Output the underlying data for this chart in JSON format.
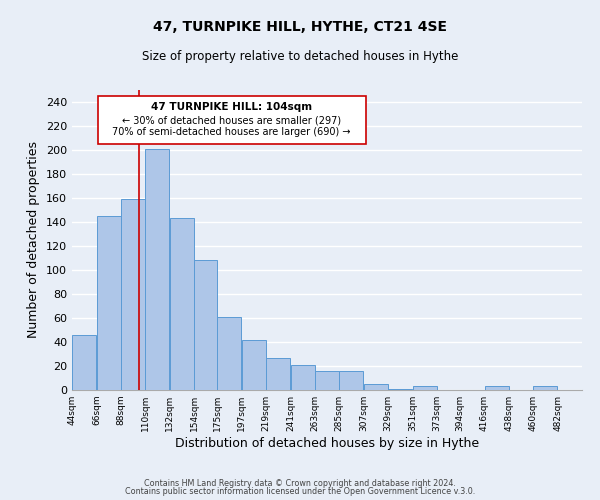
{
  "title": "47, TURNPIKE HILL, HYTHE, CT21 4SE",
  "subtitle": "Size of property relative to detached houses in Hythe",
  "xlabel": "Distribution of detached houses by size in Hythe",
  "ylabel": "Number of detached properties",
  "bar_left_edges": [
    44,
    66,
    88,
    110,
    132,
    154,
    175,
    197,
    219,
    241,
    263,
    285,
    307,
    329,
    351,
    373,
    394,
    416,
    438,
    460
  ],
  "bar_widths": [
    22,
    22,
    22,
    22,
    22,
    21,
    22,
    22,
    22,
    22,
    22,
    22,
    22,
    22,
    22,
    21,
    22,
    22,
    22,
    22
  ],
  "bar_heights": [
    46,
    145,
    159,
    201,
    143,
    108,
    61,
    42,
    27,
    21,
    16,
    16,
    5,
    1,
    3,
    0,
    0,
    3,
    0,
    3
  ],
  "tick_labels": [
    "44sqm",
    "66sqm",
    "88sqm",
    "110sqm",
    "132sqm",
    "154sqm",
    "175sqm",
    "197sqm",
    "219sqm",
    "241sqm",
    "263sqm",
    "285sqm",
    "307sqm",
    "329sqm",
    "351sqm",
    "373sqm",
    "394sqm",
    "416sqm",
    "438sqm",
    "460sqm",
    "482sqm"
  ],
  "bar_color": "#aec6e8",
  "bar_edge_color": "#5b9bd5",
  "vline_x": 104,
  "vline_color": "#cc0000",
  "annotation_lines": [
    "47 TURNPIKE HILL: 104sqm",
    "← 30% of detached houses are smaller (297)",
    "70% of semi-detached houses are larger (690) →"
  ],
  "ylim": [
    0,
    250
  ],
  "yticks": [
    0,
    20,
    40,
    60,
    80,
    100,
    120,
    140,
    160,
    180,
    200,
    220,
    240
  ],
  "footer_lines": [
    "Contains HM Land Registry data © Crown copyright and database right 2024.",
    "Contains public sector information licensed under the Open Government Licence v.3.0."
  ],
  "background_color": "#e8eef7",
  "grid_color": "#ffffff",
  "box_edge_color": "#cc0000"
}
